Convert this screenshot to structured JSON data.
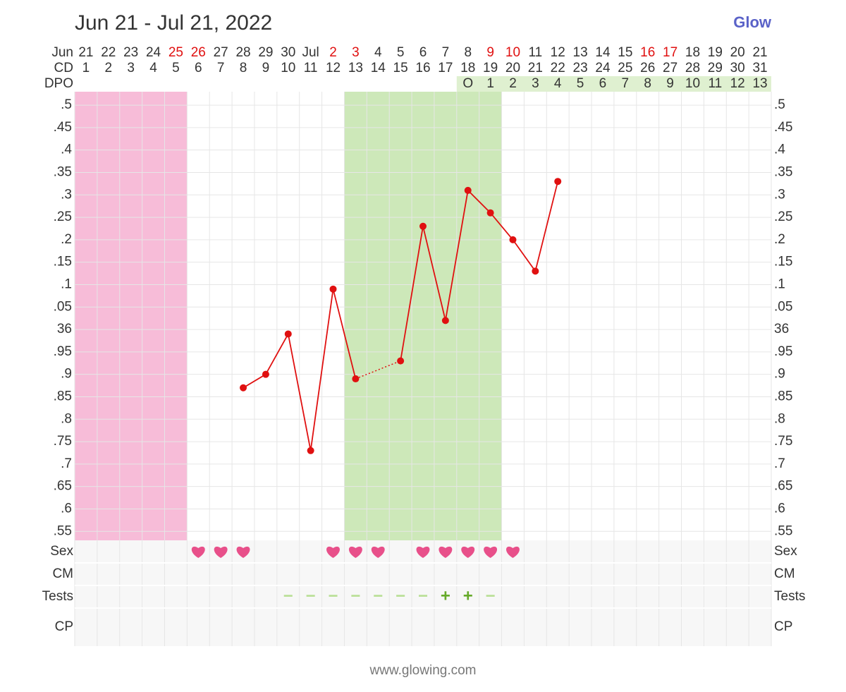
{
  "title": "Jun 21 - Jul 21, 2022",
  "brand": "Glow",
  "footer": "www.glowing.com",
  "chart_data": {
    "type": "line",
    "month_label": "Jun",
    "categories": [
      "21",
      "22",
      "23",
      "24",
      "25",
      "26",
      "27",
      "28",
      "29",
      "30",
      "Jul",
      "2",
      "3",
      "4",
      "5",
      "6",
      "7",
      "8",
      "9",
      "10",
      "11",
      "12",
      "13",
      "14",
      "15",
      "16",
      "17",
      "18",
      "19",
      "20",
      "21"
    ],
    "cycle_day_label": "CD",
    "cycle_days": [
      1,
      2,
      3,
      4,
      5,
      6,
      7,
      8,
      9,
      10,
      11,
      12,
      13,
      14,
      15,
      16,
      17,
      18,
      19,
      20,
      21,
      22,
      23,
      24,
      25,
      26,
      27,
      28,
      29,
      30,
      31
    ],
    "dpo_label": "DPO",
    "dpo": [
      null,
      null,
      null,
      null,
      null,
      null,
      null,
      null,
      null,
      null,
      null,
      null,
      null,
      null,
      null,
      null,
      null,
      "O",
      1,
      2,
      3,
      4,
      5,
      6,
      7,
      8,
      9,
      10,
      11,
      12,
      13
    ],
    "dpo_color": "#dff0d0",
    "weekend_indices": [
      4,
      5,
      11,
      12,
      18,
      19,
      25,
      26
    ],
    "weekend_color": "#e01010",
    "period": {
      "from": 0,
      "to": 4,
      "color": "#f7bcd8"
    },
    "fertile_window": {
      "from": 12,
      "to": 18,
      "color": "#cde8b9"
    },
    "series": [
      {
        "color": "#e01010",
        "values": [
          null,
          null,
          null,
          null,
          null,
          null,
          null,
          35.87,
          35.9,
          35.99,
          35.73,
          36.09,
          35.89,
          null,
          35.93,
          36.23,
          36.02,
          36.31,
          36.26,
          36.2,
          36.13,
          36.33,
          null,
          null,
          null,
          null,
          null,
          null,
          null,
          null,
          null
        ]
      }
    ],
    "ylim": [
      35.53,
      36.53
    ],
    "yticks": [
      {
        "value": 36.5,
        "label": ".5"
      },
      {
        "value": 36.45,
        "label": ".45"
      },
      {
        "value": 36.4,
        "label": ".4"
      },
      {
        "value": 36.35,
        "label": ".35"
      },
      {
        "value": 36.3,
        "label": ".3"
      },
      {
        "value": 36.25,
        "label": ".25"
      },
      {
        "value": 36.2,
        "label": ".2"
      },
      {
        "value": 36.15,
        "label": ".15"
      },
      {
        "value": 36.1,
        "label": ".1"
      },
      {
        "value": 36.05,
        "label": ".05"
      },
      36,
      {
        "value": 35.95,
        "label": ".95"
      },
      {
        "value": 35.9,
        "label": ".9"
      },
      {
        "value": 35.85,
        "label": ".85"
      },
      {
        "value": 35.8,
        "label": ".8"
      },
      {
        "value": 35.75,
        "label": ".75"
      },
      {
        "value": 35.7,
        "label": ".7"
      },
      {
        "value": 35.65,
        "label": ".65"
      },
      {
        "value": 35.6,
        "label": ".6"
      },
      {
        "value": 35.55,
        "label": ".55"
      }
    ],
    "grid": true,
    "rows": [
      {
        "label": "Sex",
        "symbol": "heart",
        "color": "#e8508a",
        "values": [
          null,
          null,
          null,
          null,
          null,
          true,
          true,
          true,
          null,
          null,
          null,
          true,
          true,
          true,
          null,
          true,
          true,
          true,
          true,
          true,
          null,
          null,
          null,
          null,
          null,
          null,
          null,
          null,
          null,
          null,
          null
        ]
      },
      {
        "label": "CM"
      },
      {
        "label": "Tests",
        "symbol": "text",
        "values": [
          null,
          null,
          null,
          null,
          null,
          null,
          null,
          null,
          null,
          "−",
          "−",
          "−",
          "−",
          "−",
          "−",
          "−",
          "+",
          "+",
          "−",
          null,
          null,
          null,
          null,
          null,
          null,
          null,
          null,
          null,
          null,
          null,
          null
        ],
        "colors": [
          null,
          null,
          null,
          null,
          null,
          null,
          null,
          null,
          null,
          "#b9df95",
          "#b9df95",
          "#b9df95",
          "#b9df95",
          "#b9df95",
          "#b9df95",
          "#b9df95",
          "#66aa2a",
          "#66aa2a",
          "#b9df95",
          null,
          null,
          null,
          null,
          null,
          null,
          null,
          null,
          null,
          null,
          null,
          null
        ]
      },
      {
        "label": "CP"
      }
    ]
  }
}
